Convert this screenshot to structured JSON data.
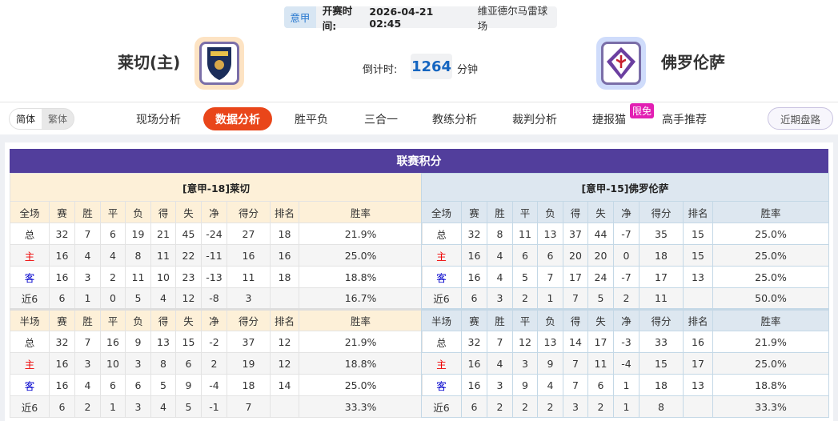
{
  "match": {
    "league": "意甲",
    "time_label": "开赛时间:",
    "time": "2026-04-21 02:45",
    "venue": "维亚德尔马雷球场"
  },
  "home": {
    "name": "莱切(主)",
    "logo_text": "LECCE"
  },
  "away": {
    "name": "佛罗伦萨"
  },
  "countdown": {
    "label": "倒计时:",
    "value": "1264",
    "unit": "分钟"
  },
  "lang": {
    "simplified": "简体",
    "traditional": "繁体"
  },
  "nav": [
    "现场分析",
    "数据分析",
    "胜平负",
    "三合一",
    "教练分析",
    "裁判分析",
    "捷报猫",
    "高手推荐"
  ],
  "nav_active": 1,
  "badge": "限免",
  "recent_button": "近期盘路",
  "standings": {
    "title": "联赛积分",
    "columns_full": [
      "全场",
      "赛",
      "胜",
      "平",
      "负",
      "得",
      "失",
      "净",
      "得分",
      "排名",
      "胜率"
    ],
    "columns_half": [
      "半场",
      "赛",
      "胜",
      "平",
      "负",
      "得",
      "失",
      "净",
      "得分",
      "排名",
      "胜率"
    ],
    "home": {
      "header": "[意甲-18]莱切",
      "full": [
        [
          "总",
          "32",
          "7",
          "6",
          "19",
          "21",
          "45",
          "-24",
          "27",
          "18",
          "21.9%"
        ],
        [
          "主",
          "16",
          "4",
          "4",
          "8",
          "11",
          "22",
          "-11",
          "16",
          "16",
          "25.0%"
        ],
        [
          "客",
          "16",
          "3",
          "2",
          "11",
          "10",
          "23",
          "-13",
          "11",
          "18",
          "18.8%"
        ],
        [
          "近6",
          "6",
          "1",
          "0",
          "5",
          "4",
          "12",
          "-8",
          "3",
          "",
          "16.7%"
        ]
      ],
      "half": [
        [
          "总",
          "32",
          "7",
          "16",
          "9",
          "13",
          "15",
          "-2",
          "37",
          "12",
          "21.9%"
        ],
        [
          "主",
          "16",
          "3",
          "10",
          "3",
          "8",
          "6",
          "2",
          "19",
          "12",
          "18.8%"
        ],
        [
          "客",
          "16",
          "4",
          "6",
          "6",
          "5",
          "9",
          "-4",
          "18",
          "14",
          "25.0%"
        ],
        [
          "近6",
          "6",
          "2",
          "1",
          "3",
          "4",
          "5",
          "-1",
          "7",
          "",
          "33.3%"
        ]
      ]
    },
    "away": {
      "header": "[意甲-15]佛罗伦萨",
      "full": [
        [
          "总",
          "32",
          "8",
          "11",
          "13",
          "37",
          "44",
          "-7",
          "35",
          "15",
          "25.0%"
        ],
        [
          "主",
          "16",
          "4",
          "6",
          "6",
          "20",
          "20",
          "0",
          "18",
          "15",
          "25.0%"
        ],
        [
          "客",
          "16",
          "4",
          "5",
          "7",
          "17",
          "24",
          "-7",
          "17",
          "13",
          "25.0%"
        ],
        [
          "近6",
          "6",
          "3",
          "2",
          "1",
          "7",
          "5",
          "2",
          "11",
          "",
          "50.0%"
        ]
      ],
      "half": [
        [
          "总",
          "32",
          "7",
          "12",
          "13",
          "14",
          "17",
          "-3",
          "33",
          "16",
          "21.9%"
        ],
        [
          "主",
          "16",
          "4",
          "3",
          "9",
          "7",
          "11",
          "-4",
          "15",
          "17",
          "25.0%"
        ],
        [
          "客",
          "16",
          "3",
          "9",
          "4",
          "7",
          "6",
          "1",
          "18",
          "13",
          "18.8%"
        ],
        [
          "近6",
          "6",
          "2",
          "2",
          "2",
          "3",
          "2",
          "1",
          "8",
          "",
          "33.3%"
        ]
      ]
    }
  },
  "colors": {
    "title_bar": "#523e9c",
    "active_tab": "#e9461a",
    "badge": "#e21fb3",
    "home_label": "#ee0000",
    "away_label": "#0000cc"
  }
}
